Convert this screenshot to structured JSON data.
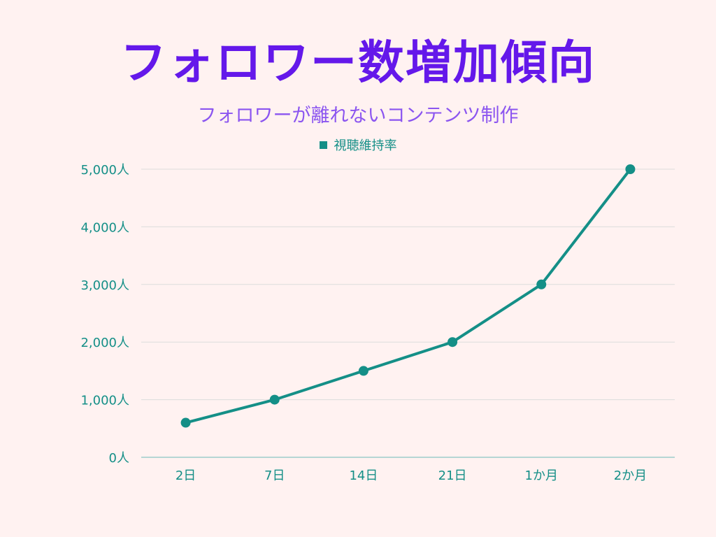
{
  "chart_data": {
    "type": "line",
    "title": "フォロワー数増加傾向",
    "subtitle": "フォロワーが離れないコンテンツ制作",
    "legend": [
      "視聴維持率"
    ],
    "legend_position": "top-center",
    "categories": [
      "2日",
      "7日",
      "14日",
      "21日",
      "1か月",
      "2か月"
    ],
    "series": [
      {
        "name": "視聴維持率",
        "values": [
          600,
          1000,
          1500,
          2000,
          3000,
          5000
        ],
        "color": "#148f87"
      }
    ],
    "yticks": [
      0,
      1000,
      2000,
      3000,
      4000,
      5000
    ],
    "ytick_labels": [
      "0人",
      "1,000人",
      "2,000人",
      "3,000人",
      "4,000人",
      "5,000人"
    ],
    "ylim": [
      0,
      5000
    ],
    "grid": true,
    "xlabel": "",
    "ylabel": ""
  },
  "colors": {
    "background": "#fff2f1",
    "title": "#6418ea",
    "subtitle": "#8b55f0",
    "series": "#148f87"
  }
}
